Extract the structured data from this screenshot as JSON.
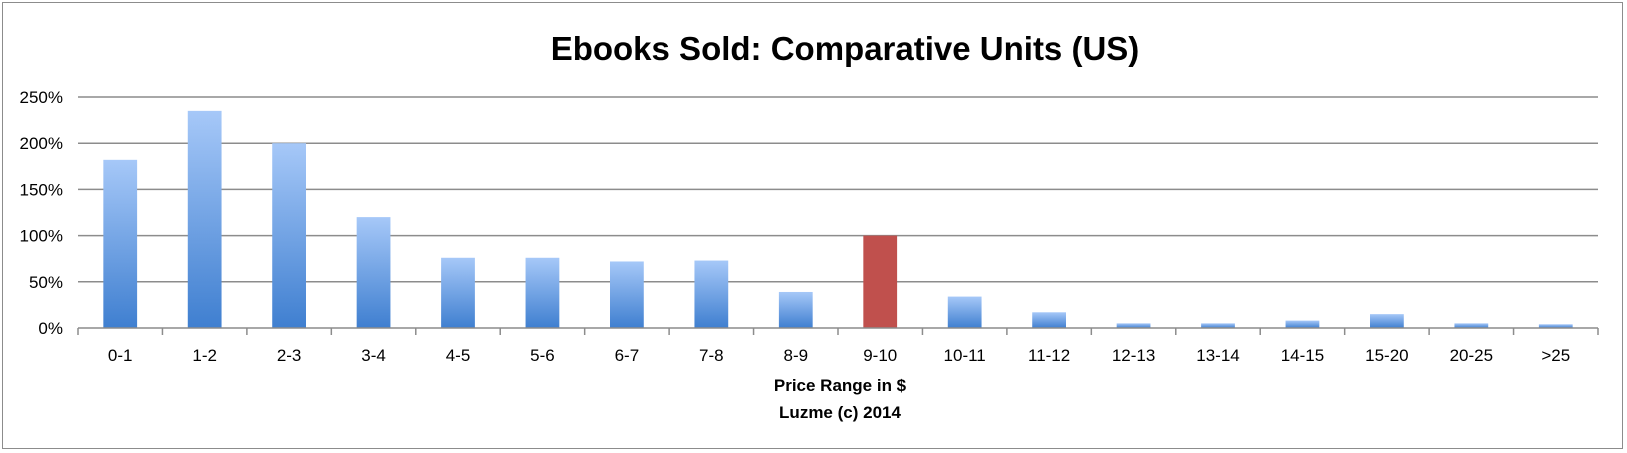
{
  "chart_data": {
    "type": "bar",
    "title": "Ebooks Sold: Comparative Units (US)",
    "xlabel": "Price Range in $",
    "caption": "Luzme (c) 2014",
    "ylabel": "",
    "ylim": [
      0,
      250
    ],
    "y_ticks": [
      0,
      50,
      100,
      150,
      200,
      250
    ],
    "y_tick_labels": [
      "0%",
      "50%",
      "100%",
      "150%",
      "200%",
      "250%"
    ],
    "grid": true,
    "categories": [
      "0-1",
      "1-2",
      "2-3",
      "3-4",
      "4-5",
      "5-6",
      "6-7",
      "7-8",
      "8-9",
      "9-10",
      "10-11",
      "11-12",
      "12-13",
      "13-14",
      "14-15",
      "15-20",
      "20-25",
      ">25"
    ],
    "values": [
      182,
      235,
      200,
      120,
      76,
      76,
      72,
      73,
      39,
      100,
      34,
      17,
      5,
      5,
      8,
      15,
      5,
      4
    ],
    "highlight_category": "9-10",
    "colors": {
      "bar_top": "#a6c8f8",
      "bar_bottom": "#3f7fd0",
      "highlight": "#c0504d",
      "grid": "#8c8c8c",
      "axis": "#8c8c8c"
    }
  }
}
